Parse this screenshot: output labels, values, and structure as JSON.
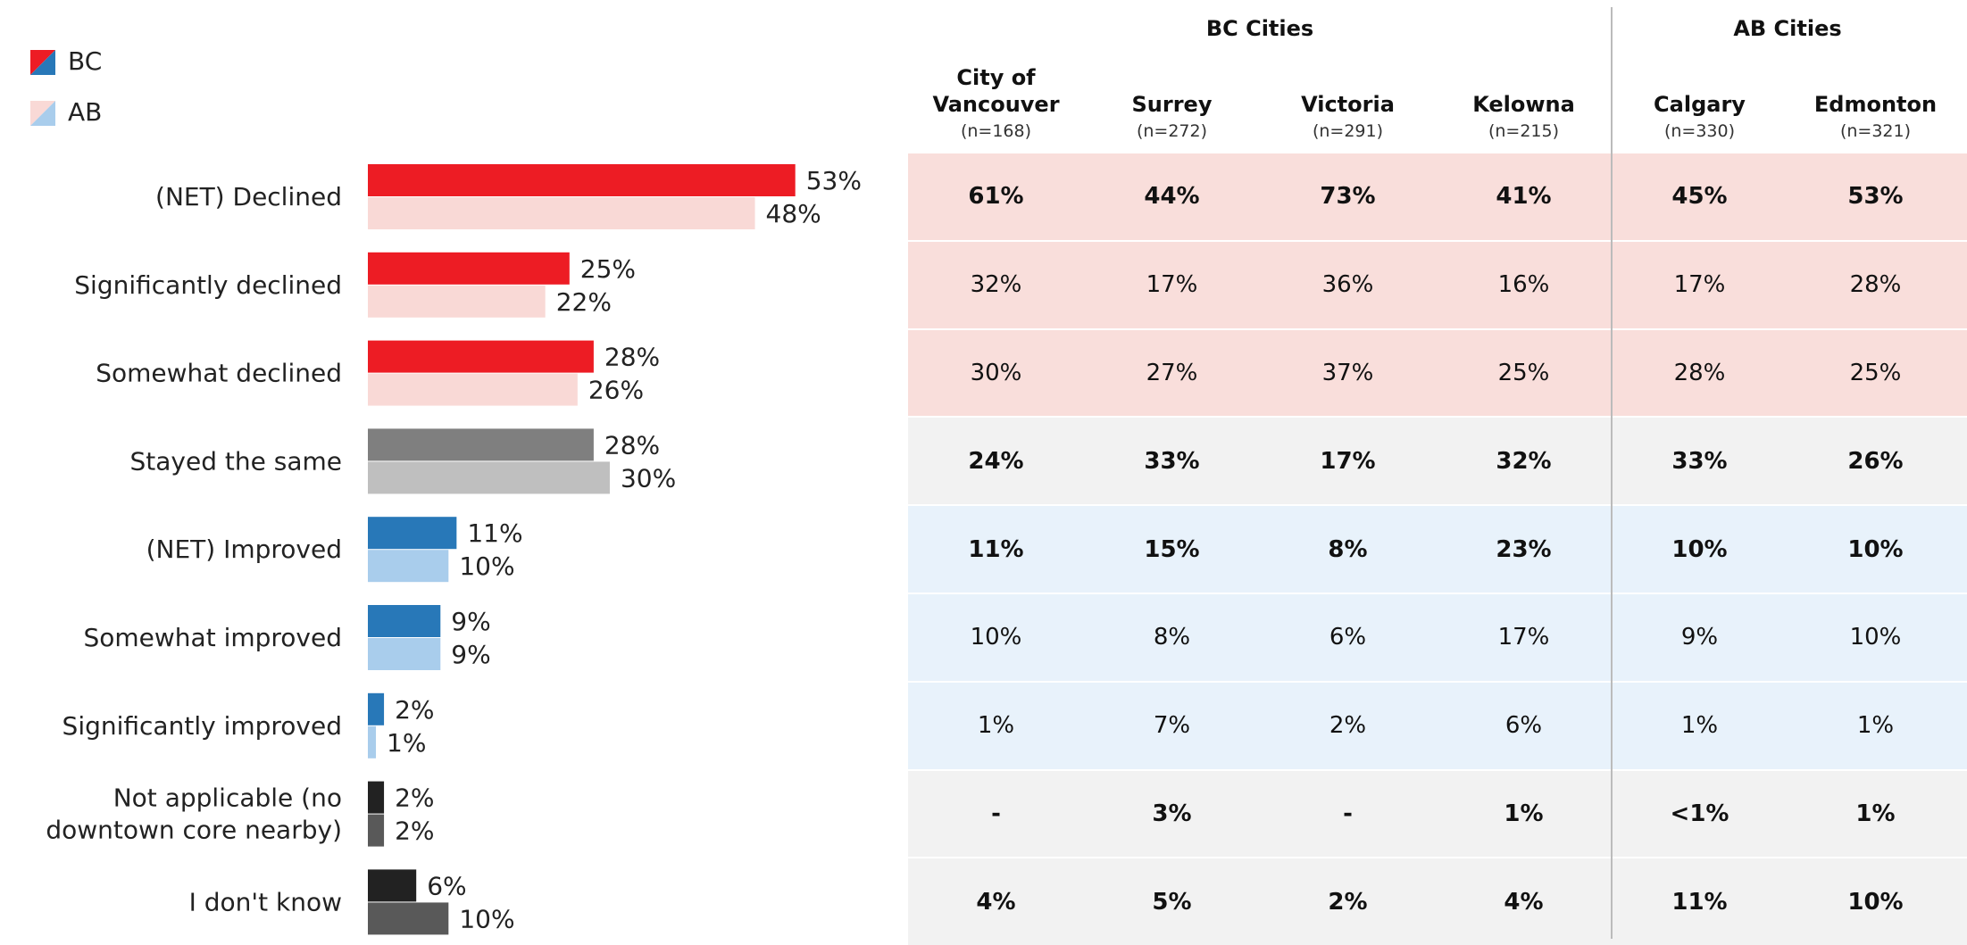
{
  "chart_data": {
    "type": "bar",
    "orientation": "horizontal",
    "legend": "top-left",
    "categories": [
      "(NET) Declined",
      "Significantly declined",
      "Somewhat declined",
      "Stayed the same",
      "(NET) Improved",
      "Somewhat improved",
      "Significantly improved",
      "Not applicable (no downtown core nearby)",
      "I don't know"
    ],
    "series": [
      {
        "name": "BC",
        "colors": [
          "#ed1c24",
          "#ed1c24",
          "#ed1c24",
          "#7f7f7f",
          "#2878b8",
          "#2878b8",
          "#2878b8",
          "#222222",
          "#222222"
        ],
        "values": [
          53,
          25,
          28,
          28,
          11,
          9,
          2,
          2,
          6
        ],
        "value_labels": [
          "53%",
          "25%",
          "28%",
          "28%",
          "11%",
          "9%",
          "2%",
          "2%",
          "6%"
        ]
      },
      {
        "name": "AB",
        "colors": [
          "#f9d9d6",
          "#f9d9d6",
          "#f9d9d6",
          "#bfbfbf",
          "#a9cdec",
          "#a9cdec",
          "#a9cdec",
          "#595959",
          "#595959"
        ],
        "values": [
          48,
          22,
          26,
          30,
          10,
          9,
          1,
          2,
          10
        ],
        "value_labels": [
          "48%",
          "22%",
          "26%",
          "30%",
          "10%",
          "9%",
          "1%",
          "2%",
          "10%"
        ]
      }
    ]
  },
  "table": {
    "groups": [
      {
        "title": "BC Cities",
        "columns": [
          {
            "name": "City of Vancouver",
            "n": "(n=168)"
          },
          {
            "name": "Surrey",
            "n": "(n=272)"
          },
          {
            "name": "Victoria",
            "n": "(n=291)"
          },
          {
            "name": "Kelowna",
            "n": "(n=215)"
          }
        ]
      },
      {
        "title": "AB Cities",
        "columns": [
          {
            "name": "Calgary",
            "n": "(n=330)"
          },
          {
            "name": "Edmonton",
            "n": "(n=321)"
          }
        ]
      }
    ],
    "rows": [
      [
        "61%",
        "44%",
        "73%",
        "41%",
        "45%",
        "53%"
      ],
      [
        "32%",
        "17%",
        "36%",
        "16%",
        "17%",
        "28%"
      ],
      [
        "30%",
        "27%",
        "37%",
        "25%",
        "28%",
        "25%"
      ],
      [
        "24%",
        "33%",
        "17%",
        "32%",
        "33%",
        "26%"
      ],
      [
        "11%",
        "15%",
        "8%",
        "23%",
        "10%",
        "10%"
      ],
      [
        "10%",
        "8%",
        "6%",
        "17%",
        "9%",
        "10%"
      ],
      [
        "1%",
        "7%",
        "2%",
        "6%",
        "1%",
        "1%"
      ],
      [
        "-",
        "3%",
        "-",
        "1%",
        "<1%",
        "1%"
      ],
      [
        "4%",
        "5%",
        "2%",
        "4%",
        "11%",
        "10%"
      ]
    ]
  }
}
